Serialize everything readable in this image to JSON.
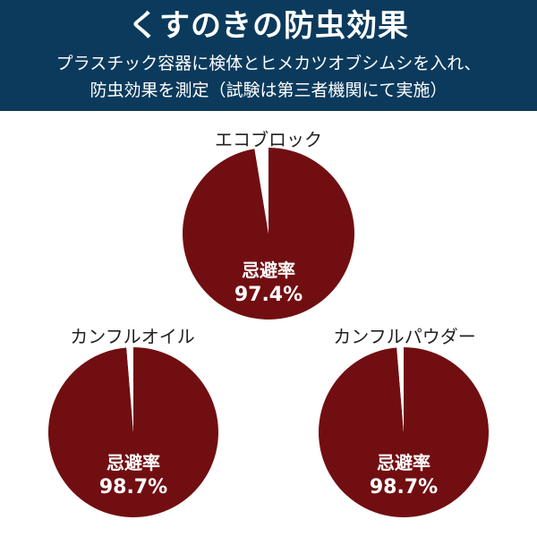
{
  "header": {
    "title": "くすのきの防虫効果",
    "subtitle_line1": "プラスチック容器に検体とヒメカツオブシムシを入れ、",
    "subtitle_line2": "防虫効果を測定（試験は第三者機関にて実施）"
  },
  "colors": {
    "header_bg": "#0b3a5c",
    "pie_fill": "#710e12",
    "pie_remainder": "#ffffff"
  },
  "chart_data": [
    {
      "type": "pie",
      "title": "エコブロック",
      "slices": [
        {
          "label": "忌避率",
          "value": 97.4
        },
        {
          "label": "",
          "value": 2.6
        }
      ],
      "data_label": "忌避率",
      "value_text": "97.4%"
    },
    {
      "type": "pie",
      "title": "カンフルオイル",
      "slices": [
        {
          "label": "忌避率",
          "value": 98.7
        },
        {
          "label": "",
          "value": 1.3
        }
      ],
      "data_label": "忌避率",
      "value_text": "98.7%"
    },
    {
      "type": "pie",
      "title": "カンフルパウダー",
      "slices": [
        {
          "label": "忌避率",
          "value": 98.7
        },
        {
          "label": "",
          "value": 1.3
        }
      ],
      "data_label": "忌避率",
      "value_text": "98.7%"
    }
  ]
}
